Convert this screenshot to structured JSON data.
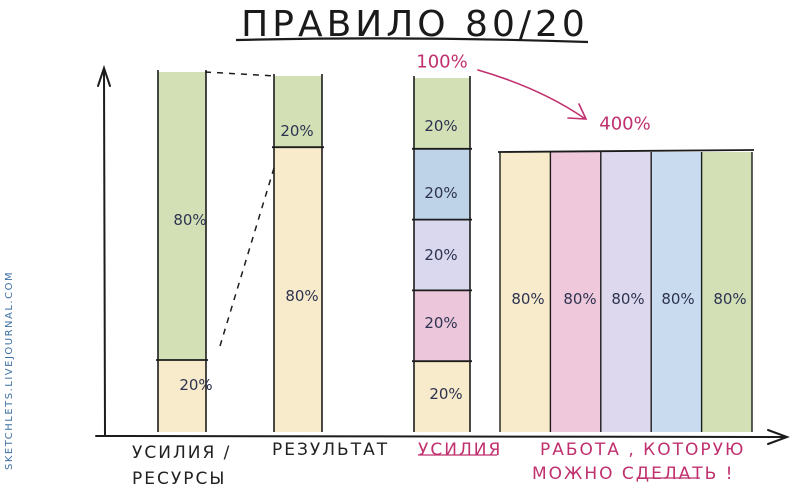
{
  "title": "ПРАВИЛО 80/20",
  "credit": "SKETCHLETS.LIVEJOURNAL.COM",
  "labels": {
    "effort_resources": "УСИЛИЯ / РЕСУРСЫ",
    "result": "РЕЗУЛЬТАТ",
    "effort": "УСИЛИЯ",
    "work_line1": "РАБОТА , КОТОРУЮ",
    "work_line2": "МОЖНО  СДЕЛАТЬ !"
  },
  "annotations": {
    "effort_total": "100%",
    "work_total": "400%"
  },
  "bars": {
    "effort_resources": [
      {
        "label": "80%",
        "value": 80,
        "color": "#d3e0b6"
      },
      {
        "label": "20%",
        "value": 20,
        "color": "#f7ebcb"
      }
    ],
    "result": [
      {
        "label": "20%",
        "value": 20,
        "color": "#d3e0b6"
      },
      {
        "label": "80%",
        "value": 80,
        "color": "#f7ebcb"
      }
    ],
    "effort_split": [
      {
        "label": "20%",
        "value": 20,
        "color": "#d3e0b6"
      },
      {
        "label": "20%",
        "value": 20,
        "color": "#bed3e8"
      },
      {
        "label": "20%",
        "value": 20,
        "color": "#dad8ee"
      },
      {
        "label": "20%",
        "value": 20,
        "color": "#ecc6da"
      },
      {
        "label": "20%",
        "value": 20,
        "color": "#f7ebcb"
      }
    ],
    "work": [
      {
        "label": "80%",
        "value": 80,
        "color": "#f7ebcb"
      },
      {
        "label": "80%",
        "value": 80,
        "color": "#f0c8dc"
      },
      {
        "label": "80%",
        "value": 80,
        "color": "#ddd8ee"
      },
      {
        "label": "80%",
        "value": 80,
        "color": "#c9dcef"
      },
      {
        "label": "80%",
        "value": 80,
        "color": "#d3e0b6"
      }
    ]
  },
  "colors": {
    "ink": "#1c1c1c",
    "accent": "#c0306e"
  }
}
